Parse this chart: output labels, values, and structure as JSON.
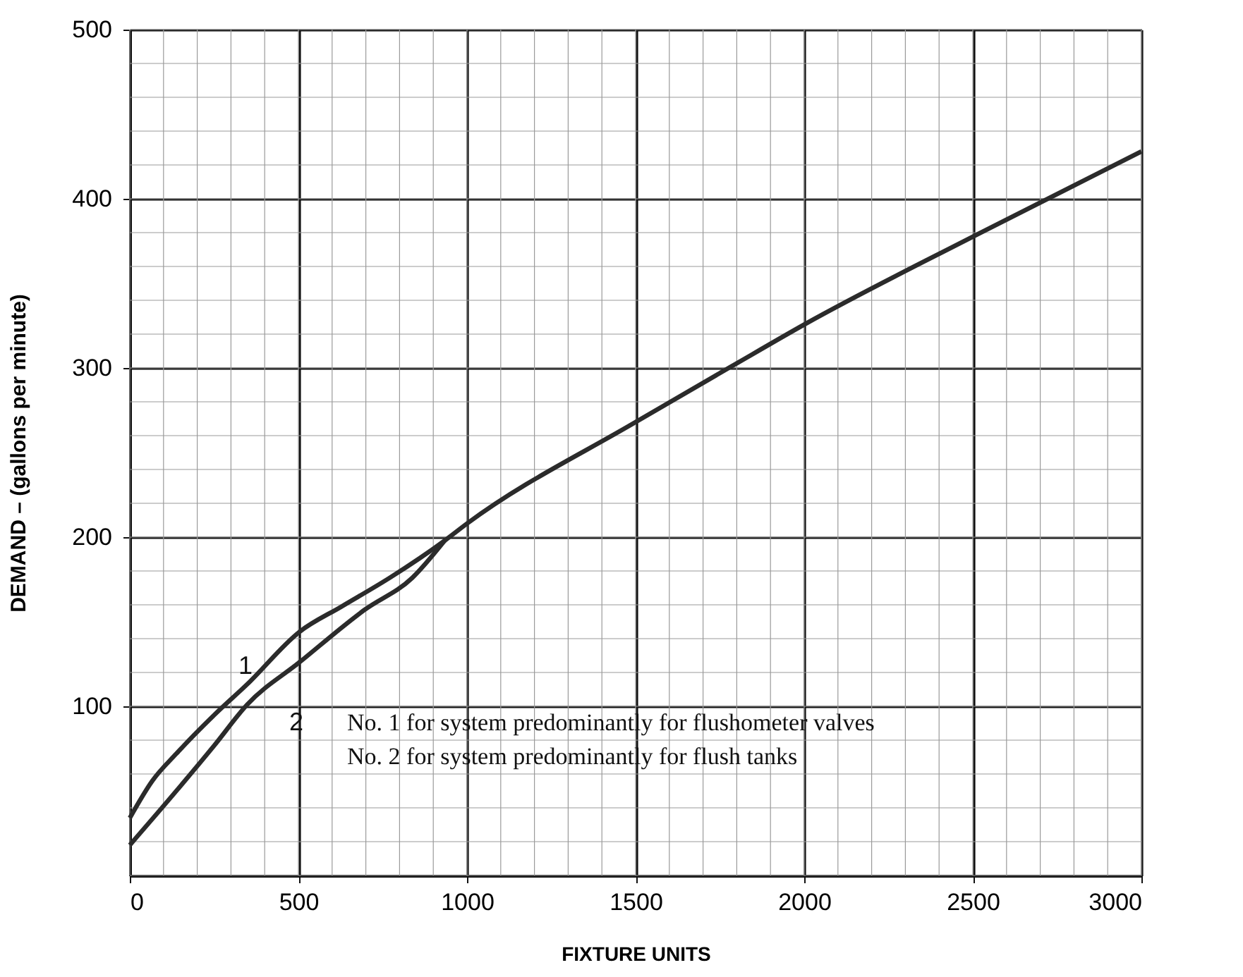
{
  "chart_data": {
    "type": "line",
    "xlabel": "FIXTURE UNITS",
    "ylabel": "DEMAND – (gallons per minute)",
    "xlim": [
      0,
      3000
    ],
    "ylim": [
      0,
      500
    ],
    "xticks": [
      0,
      500,
      1000,
      1500,
      2000,
      2500,
      3000
    ],
    "yticks": [
      100,
      200,
      300,
      400,
      500
    ],
    "grid": true,
    "line_style": "solid",
    "marker": "none",
    "series": [
      {
        "color": "#2b2b2b",
        "x": [
          0,
          67,
          138,
          251,
          348,
          503,
          628,
          771,
          934,
          1000,
          1500,
          1785,
          2003,
          2514,
          3000
        ],
        "values": [
          34,
          56,
          72,
          95,
          113,
          144,
          159,
          176,
          198,
          208,
          268,
          301,
          326,
          379,
          428
        ]
      },
      {
        "color": "#2b2b2b",
        "x": [
          0,
          138,
          251,
          348,
          503,
          696,
          838,
          934
        ],
        "values": [
          18,
          50,
          77,
          101,
          126,
          157,
          176,
          198
        ]
      }
    ],
    "annotations": [
      "1",
      "2",
      "No. 1 for system predominantly for flushometer valves",
      "No. 2 for system predominantly for flush tanks"
    ]
  }
}
